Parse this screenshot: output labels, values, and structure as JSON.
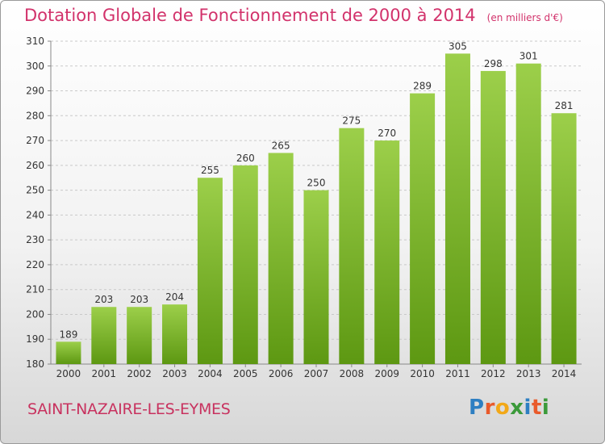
{
  "title": "Dotation Globale de Fonctionnement de 2000 à 2014",
  "unit_note": "(en milliers d'€)",
  "commune": "SAINT-NAZAIRE-LES-EYMES",
  "logo": {
    "letters": [
      "P",
      "r",
      "o",
      "x",
      "i",
      "t",
      "i"
    ]
  },
  "colors": {
    "bar_top": "#9ccf4a",
    "bar_bottom": "#5d9812",
    "title": "#d2326b"
  },
  "chart_data": {
    "type": "bar",
    "title": "Dotation Globale de Fonctionnement de 2000 à 2014",
    "categories": [
      "2000",
      "2001",
      "2002",
      "2003",
      "2004",
      "2005",
      "2006",
      "2007",
      "2008",
      "2009",
      "2010",
      "2011",
      "2012",
      "2013",
      "2014"
    ],
    "values": [
      189,
      203,
      203,
      204,
      255,
      260,
      265,
      250,
      275,
      270,
      289,
      305,
      298,
      301,
      281
    ],
    "yticks": [
      180,
      190,
      200,
      210,
      220,
      230,
      240,
      250,
      260,
      270,
      280,
      290,
      300,
      310
    ],
    "ylim": [
      180,
      310
    ],
    "grid": true
  }
}
